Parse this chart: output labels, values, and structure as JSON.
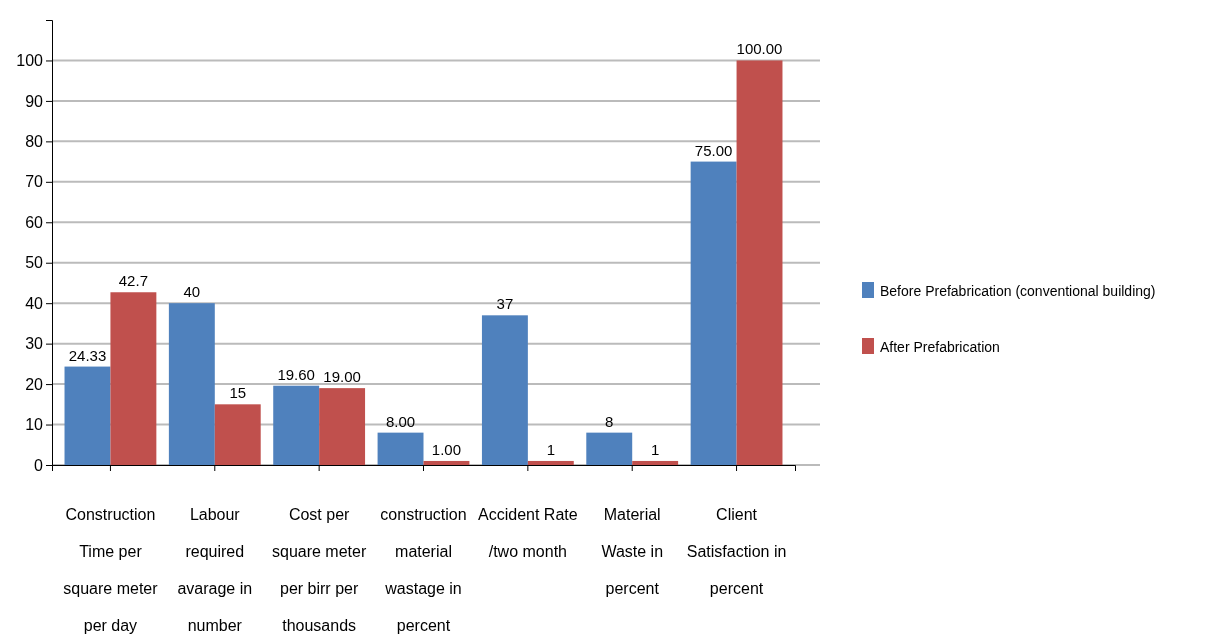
{
  "chart_data": {
    "type": "bar",
    "categories": [
      "Construction Time per square meter per day",
      "Labour required avarage in number",
      "Cost per square meter per birr per thousands",
      "construction material wastage in percent",
      "Accident Rate /two month",
      "Material Waste in percent",
      "Client Satisfaction in percent"
    ],
    "series": [
      {
        "name": "Before Prefabrication (conventional building)",
        "color": "#4f81bd",
        "values": [
          24.33,
          40,
          19.6,
          8,
          37,
          8,
          75
        ],
        "value_labels": [
          "24.33",
          "40",
          "19.60",
          "8.00",
          "37",
          "8",
          "75.00"
        ]
      },
      {
        "name": "After Prefabrication",
        "color": "#c0504d",
        "values": [
          42.7,
          15,
          19,
          1,
          1,
          1,
          100
        ],
        "value_labels": [
          "42.7",
          "15",
          "19.00",
          "1.00",
          "1",
          "1",
          "100.00"
        ]
      }
    ],
    "ylim": [
      0,
      110
    ],
    "yticks": [
      0,
      10,
      20,
      30,
      40,
      50,
      60,
      70,
      80,
      90,
      100
    ],
    "grid": "y",
    "legend": "right"
  }
}
